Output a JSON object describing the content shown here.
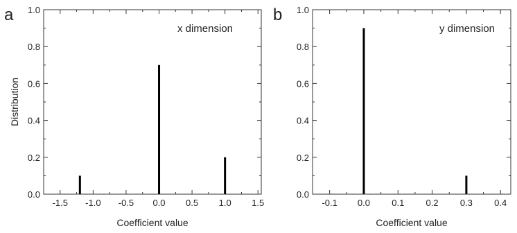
{
  "chart_data": [
    {
      "type": "bar",
      "panel_label": "a",
      "annotation": "x dimension",
      "xlabel": "Coefficient value",
      "ylabel": "Distribution",
      "xlim": [
        -1.75,
        1.55
      ],
      "ylim": [
        0,
        1.0
      ],
      "xticks": [
        -1.5,
        -1.0,
        -0.5,
        0.0,
        0.5,
        1.0,
        1.5
      ],
      "xtick_labels": [
        "-1.5",
        "-1.0",
        "-0.5",
        "0.0",
        "0.5",
        "1.0",
        "1.5"
      ],
      "yticks": [
        0.0,
        0.2,
        0.4,
        0.6,
        0.8,
        1.0
      ],
      "ytick_labels": [
        "0.0",
        "0.2",
        "0.4",
        "0.6",
        "0.8",
        "1.0"
      ],
      "points": [
        {
          "x": -1.2,
          "y": 0.1
        },
        {
          "x": 0.0,
          "y": 0.7
        },
        {
          "x": 1.0,
          "y": 0.2
        }
      ],
      "grid": false,
      "color": "#000000"
    },
    {
      "type": "bar",
      "panel_label": "b",
      "annotation": "y dimension",
      "xlabel": "Coefficient value",
      "ylabel": "",
      "xlim": [
        -0.15,
        0.43
      ],
      "ylim": [
        0,
        1.0
      ],
      "xticks": [
        -0.1,
        0.0,
        0.1,
        0.2,
        0.3,
        0.4
      ],
      "xtick_labels": [
        "-0.1",
        "0.0",
        "0.1",
        "0.2",
        "0.3",
        "0.4"
      ],
      "yticks": [
        0.0,
        0.2,
        0.4,
        0.6,
        0.8,
        1.0
      ],
      "ytick_labels": [
        "0.0",
        "0.2",
        "0.4",
        "0.6",
        "0.8",
        "1.0"
      ],
      "points": [
        {
          "x": 0.0,
          "y": 0.9
        },
        {
          "x": 0.3,
          "y": 0.1
        }
      ],
      "grid": false,
      "color": "#000000"
    }
  ]
}
